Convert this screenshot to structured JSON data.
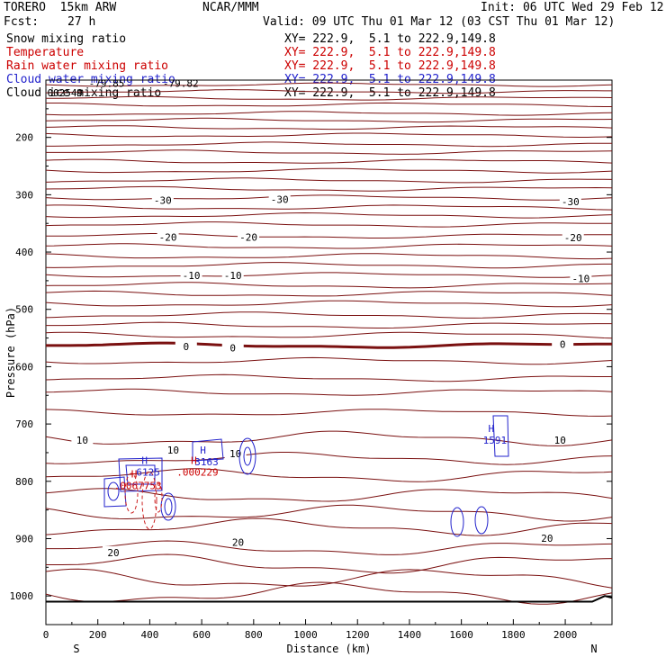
{
  "header": {
    "model": "TORERO  15km ARW",
    "center": "NCAR/MMM",
    "init": "Init: 06 UTC Wed 29 Feb 12",
    "fcst_label": "Fcst:",
    "fcst_value": "27 h",
    "valid": "Valid: 09 UTC Thu 01 Mar 12 (03 CST Thu 01 Mar 12)"
  },
  "fields": [
    {
      "name": "Snow mixing ratio",
      "xy": "XY= 222.9,  5.1 to 222.9,149.8",
      "color": "#000000"
    },
    {
      "name": "Temperature",
      "xy": "XY= 222.9,  5.1 to 222.9,149.8",
      "color": "#cc0000"
    },
    {
      "name": "Rain water mixing ratio",
      "xy": "XY= 222.9,  5.1 to 222.9,149.8",
      "color": "#cc0000"
    },
    {
      "name": "Cloud water mixing ratio",
      "xy": "XY= 222.9,  5.1 to 222.9,149.8",
      "color": "#2222cc"
    },
    {
      "name": "Cloud ice mixing ratio",
      "xy": "XY= 222.9,  5.1 to 222.9,149.8",
      "color": "#000000"
    }
  ],
  "chart_data": {
    "type": "contour-cross-section",
    "xlabel": "Distance (km)",
    "ylabel": "Pressure (hPa)",
    "xlim": [
      0,
      2180
    ],
    "ylim": [
      1050,
      100
    ],
    "x_ticks": [
      0,
      200,
      400,
      600,
      800,
      1000,
      1200,
      1400,
      1600,
      1800,
      2000
    ],
    "y_ticks": [
      200,
      300,
      400,
      500,
      600,
      700,
      800,
      900,
      1000
    ],
    "x_end_labels": {
      "left": "S",
      "right": "N"
    },
    "temperature_isotherms": [
      {
        "label": "-30",
        "p": 305
      },
      {
        "label": "-20",
        "p": 372
      },
      {
        "label": "-10",
        "p": 440
      },
      {
        "label": "0",
        "p": 563
      },
      {
        "label": "10",
        "p": 725
      },
      {
        "label": "20",
        "p": 917
      }
    ],
    "temperature_labels": [
      {
        "text": "-30",
        "x": 450,
        "p": 310
      },
      {
        "text": "-30",
        "x": 900,
        "p": 308
      },
      {
        "text": "-30",
        "x": 2020,
        "p": 312
      },
      {
        "text": "-20",
        "x": 470,
        "p": 374
      },
      {
        "text": "-20",
        "x": 780,
        "p": 374
      },
      {
        "text": "-20",
        "x": 2030,
        "p": 375
      },
      {
        "text": "-10",
        "x": 560,
        "p": 441
      },
      {
        "text": "-10",
        "x": 720,
        "p": 441
      },
      {
        "text": "-10",
        "x": 2060,
        "p": 446
      },
      {
        "text": "0",
        "x": 540,
        "p": 565
      },
      {
        "text": "0",
        "x": 720,
        "p": 567
      },
      {
        "text": "0",
        "x": 1990,
        "p": 561
      },
      {
        "text": "10",
        "x": 140,
        "p": 728
      },
      {
        "text": "10",
        "x": 490,
        "p": 745
      },
      {
        "text": "10",
        "x": 730,
        "p": 752
      },
      {
        "text": "10",
        "x": 1980,
        "p": 728
      },
      {
        "text": "20",
        "x": 260,
        "p": 924
      },
      {
        "text": "20",
        "x": 740,
        "p": 906
      },
      {
        "text": "20",
        "x": 1930,
        "p": 899
      }
    ],
    "highs": [
      {
        "label": "H",
        "value": "3163",
        "x": 605,
        "p": 752,
        "color": "#2222cc"
      },
      {
        "label": "H",
        "value": "6125",
        "x": 380,
        "p": 770,
        "color": "#2222cc"
      },
      {
        "label": "H",
        "value": ".0067753",
        "x": 340,
        "p": 793,
        "color": "#cc0000"
      },
      {
        "label": "H",
        "value": ".000229",
        "x": 570,
        "p": 770,
        "color": "#cc0000"
      },
      {
        "label": "H",
        "value": "1591",
        "x": 1715,
        "p": 714,
        "color": "#2222cc"
      }
    ],
    "top_labels": [
      {
        "text": "-79.85",
        "x": 165,
        "p": 112
      },
      {
        "text": "-79.82",
        "x": 450,
        "p": 112
      },
      {
        "text": "002549",
        "x": 5,
        "p": 128
      }
    ]
  }
}
